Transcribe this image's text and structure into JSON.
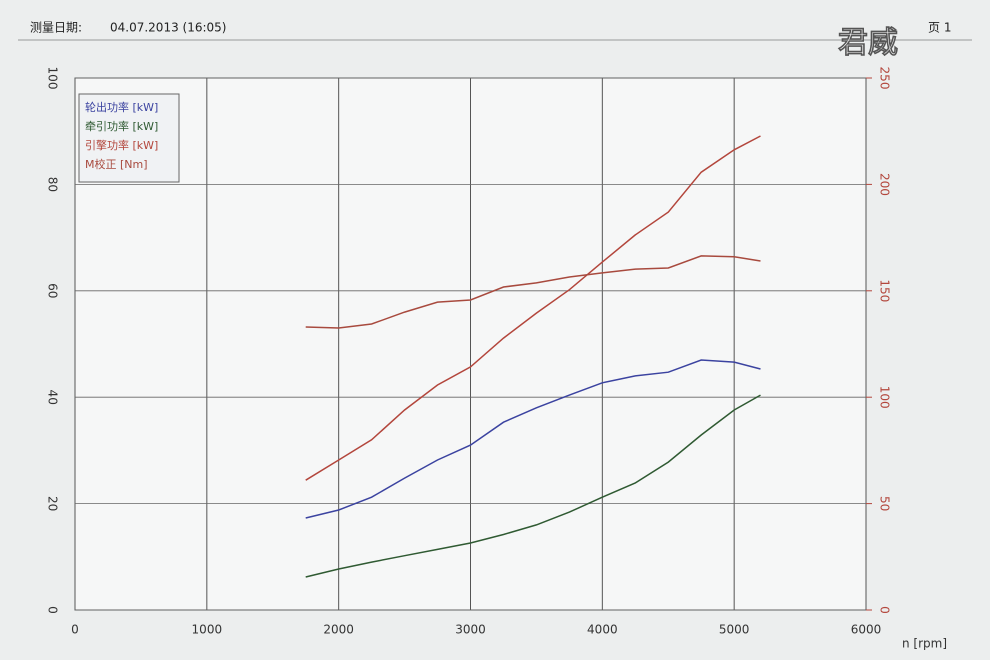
{
  "header": {
    "date_label": "测量日期:",
    "date": "04.07.2013 (16:05)",
    "page": "页 1",
    "watermark": "君威"
  },
  "chart_data": {
    "type": "line",
    "x_label": "n [rpm]",
    "x": [
      1750,
      2000,
      2250,
      2500,
      2750,
      3000,
      3250,
      3500,
      3750,
      4000,
      4250,
      4500,
      4750,
      5000,
      5200
    ],
    "series": [
      {
        "name": "轮出功率 [kW]",
        "color": "#3b43a0",
        "values": [
          17.3,
          18.8,
          21.2,
          24.8,
          28.2,
          31,
          35.3,
          38,
          40.4,
          42.7,
          44,
          44.7,
          47,
          46.6,
          45.3
        ]
      },
      {
        "name": "牵引功率 [kW]",
        "color": "#2f5a32",
        "values": [
          6.2,
          7.7,
          9,
          10.2,
          11.4,
          12.6,
          14.2,
          16,
          18.4,
          21.2,
          23.9,
          27.8,
          32.9,
          37.6,
          40.4
        ]
      },
      {
        "name": "引擎功率 [kW]",
        "color": "#b3463c",
        "values": [
          24.4,
          28.2,
          32,
          37.6,
          42.3,
          45.7,
          51.1,
          55.8,
          60.2,
          65.4,
          70.5,
          74.8,
          82.3,
          86.5,
          89.1
        ]
      },
      {
        "name": "M校正 [Nm]",
        "color": "#a84a3e",
        "axis": "y2",
        "values": [
          133,
          132.5,
          134.4,
          140,
          144.7,
          145.7,
          151.8,
          153.7,
          156.5,
          158.4,
          160.2,
          160.7,
          166.4,
          166,
          164
        ]
      }
    ],
    "xlim": [
      0,
      6000
    ],
    "xticks": [
      0,
      1000,
      2000,
      3000,
      4000,
      5000,
      6000
    ],
    "ylim": [
      0,
      100
    ],
    "yticks": [
      0,
      20,
      40,
      60,
      80,
      100
    ],
    "y2lim": [
      0,
      250
    ],
    "y2ticks": [
      0,
      50,
      100,
      150,
      200,
      250
    ],
    "y2_color": "#b3463c",
    "grid": true,
    "legend": "top-left"
  }
}
